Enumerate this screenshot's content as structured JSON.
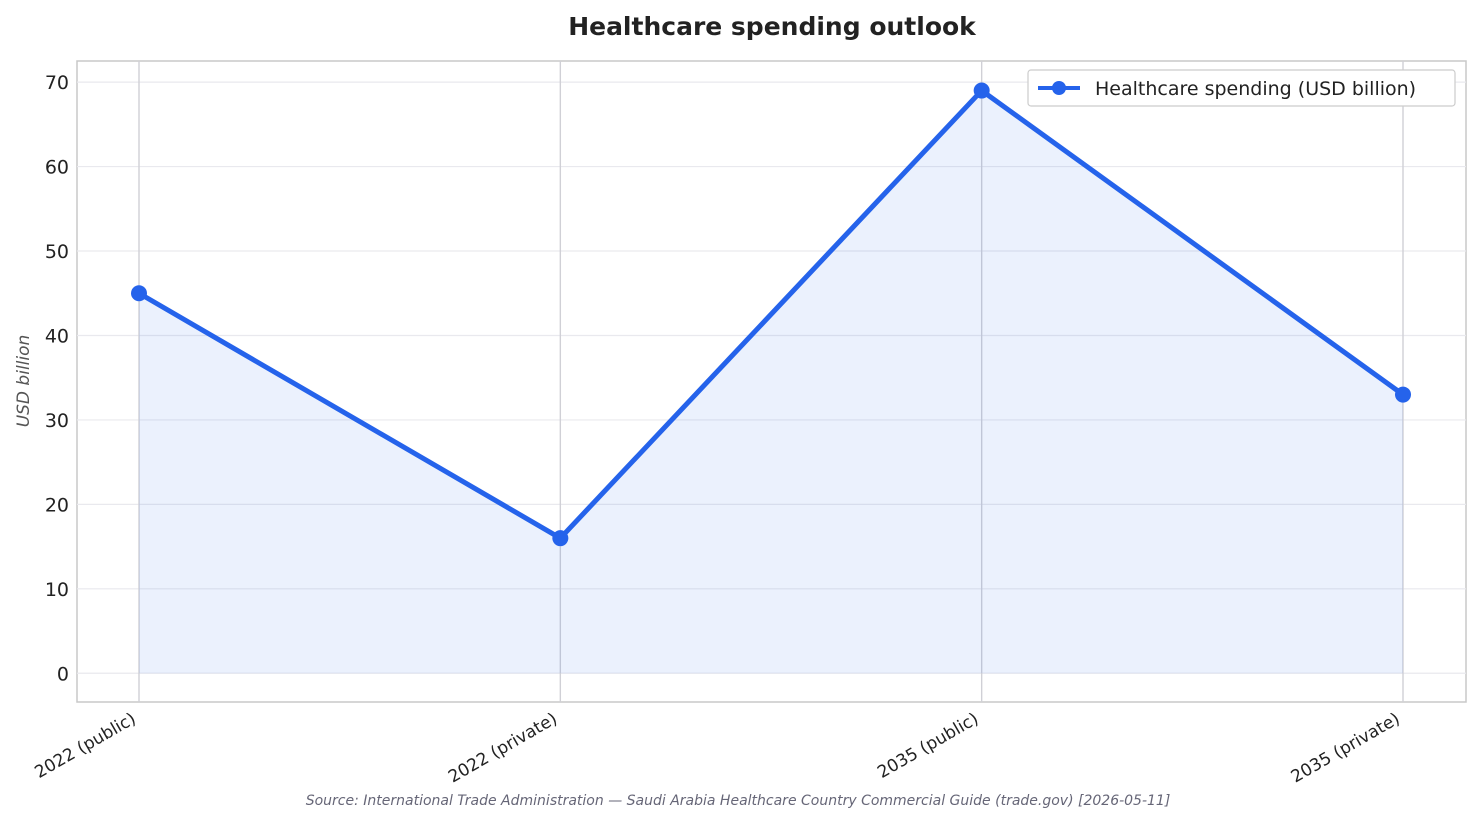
{
  "chart_data": {
    "type": "line",
    "title": "Healthcare spending outlook",
    "xlabel": "",
    "ylabel": "USD billion",
    "categories": [
      "2022 (public)",
      "2022 (private)",
      "2035 (public)",
      "2035 (private)"
    ],
    "series": [
      {
        "name": "Healthcare spending (USD billion)",
        "values": [
          45,
          16,
          69,
          33
        ],
        "color": "#2563eb"
      }
    ],
    "ylim": [
      -3.4,
      72.5
    ],
    "yticks": [
      0,
      10,
      20,
      30,
      40,
      50,
      60,
      70
    ],
    "grid": true,
    "area_fill": true,
    "legend_position": "top-right",
    "source": "Source: International Trade Administration — Saudi Arabia Healthcare Country Commercial Guide (trade.gov) [2026-05-11]"
  }
}
